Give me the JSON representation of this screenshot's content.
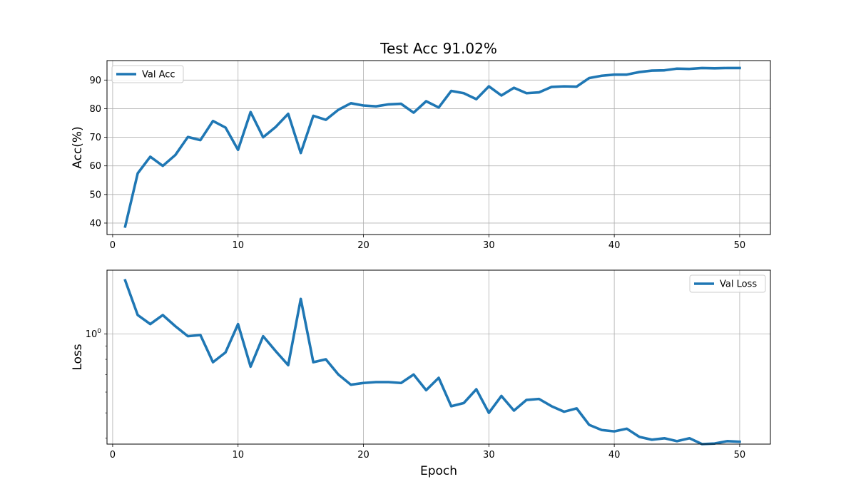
{
  "chart_data": [
    {
      "type": "line",
      "title": "Test Acc 91.02%",
      "xlabel": "",
      "ylabel": "Acc(%)",
      "xlim": [
        -0.45,
        52.45
      ],
      "ylim": [
        36,
        96.8
      ],
      "x_ticks": [
        0,
        10,
        20,
        30,
        40,
        50
      ],
      "y_ticks": [
        40,
        50,
        60,
        70,
        80,
        90
      ],
      "grid": true,
      "legend_position": "top-left",
      "series": [
        {
          "name": "Val Acc",
          "color": "#1f77b4",
          "x": [
            1,
            2,
            3,
            4,
            5,
            6,
            7,
            8,
            9,
            10,
            11,
            12,
            13,
            14,
            15,
            16,
            17,
            18,
            19,
            20,
            21,
            22,
            23,
            24,
            25,
            26,
            27,
            28,
            29,
            30,
            31,
            32,
            33,
            34,
            35,
            36,
            37,
            38,
            39,
            40,
            41,
            42,
            43,
            44,
            45,
            46,
            47,
            48,
            49,
            50
          ],
          "y": [
            38.8,
            57.4,
            63.2,
            60.0,
            63.8,
            70.1,
            69.0,
            75.7,
            73.4,
            65.6,
            78.8,
            70.0,
            73.6,
            78.2,
            64.5,
            77.5,
            76.1,
            79.6,
            81.9,
            81.1,
            80.8,
            81.5,
            81.7,
            78.6,
            82.6,
            80.4,
            86.2,
            85.4,
            83.3,
            87.8,
            84.6,
            87.3,
            85.4,
            85.7,
            87.6,
            87.8,
            87.7,
            90.7,
            91.5,
            91.9,
            91.9,
            92.8,
            93.3,
            93.4,
            94.0,
            93.9,
            94.2,
            94.1,
            94.2,
            94.2
          ]
        }
      ]
    },
    {
      "type": "line",
      "title": "",
      "xlabel": "Epoch",
      "ylabel": "Loss",
      "yscale": "log",
      "xlim": [
        -0.45,
        52.45
      ],
      "ylim": [
        0.38,
        1.75
      ],
      "x_ticks": [
        0,
        10,
        20,
        30,
        40,
        50
      ],
      "y_ticks_major": [
        {
          "value": 1,
          "base": "10",
          "exp": "0"
        }
      ],
      "y_ticks_minor": [
        0.4,
        0.5,
        0.6,
        0.7,
        0.8,
        0.9
      ],
      "grid": true,
      "legend_position": "top-right",
      "series": [
        {
          "name": "Val Loss",
          "color": "#1f77b4",
          "x": [
            1,
            2,
            3,
            4,
            5,
            6,
            7,
            8,
            9,
            10,
            11,
            12,
            13,
            14,
            15,
            16,
            17,
            18,
            19,
            20,
            21,
            22,
            23,
            24,
            25,
            26,
            27,
            28,
            29,
            30,
            31,
            32,
            33,
            34,
            35,
            36,
            37,
            38,
            39,
            40,
            41,
            42,
            43,
            44,
            45,
            46,
            47,
            48,
            49,
            50
          ],
          "y": [
            1.6,
            1.18,
            1.09,
            1.18,
            1.07,
            0.98,
            0.99,
            0.78,
            0.85,
            1.09,
            0.75,
            0.98,
            0.86,
            0.76,
            1.36,
            0.78,
            0.8,
            0.7,
            0.64,
            0.65,
            0.655,
            0.655,
            0.65,
            0.7,
            0.61,
            0.68,
            0.53,
            0.545,
            0.615,
            0.5,
            0.58,
            0.51,
            0.56,
            0.565,
            0.53,
            0.505,
            0.52,
            0.45,
            0.43,
            0.425,
            0.435,
            0.405,
            0.395,
            0.4,
            0.39,
            0.4,
            0.38,
            0.382,
            0.39,
            0.388
          ]
        }
      ]
    }
  ]
}
